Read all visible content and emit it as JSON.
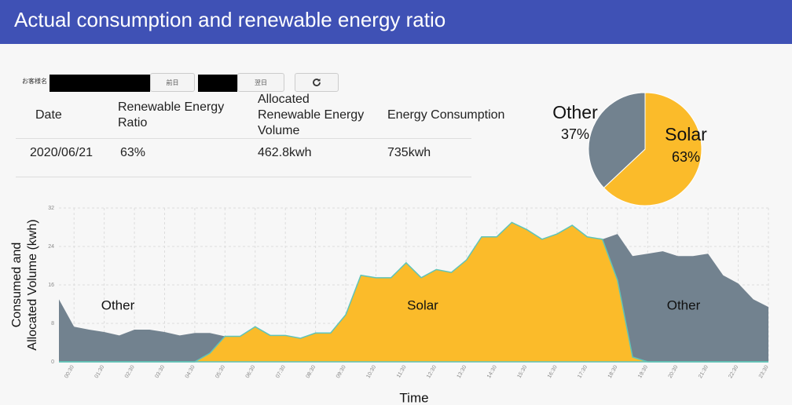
{
  "header": {
    "title": "Actual consumption and renewable energy ratio"
  },
  "controls": {
    "customer_label": "お客様名",
    "prev_button": "前日",
    "next_button": "翌日"
  },
  "table": {
    "columns": [
      "Date",
      "Renewable Energy Ratio",
      "Allocated Renewable Energy Volume",
      "Energy Consumption"
    ],
    "rows": [
      [
        "2020/06/21",
        "63%",
        "462.8kwh",
        "735kwh"
      ]
    ]
  },
  "chart_data": [
    {
      "type": "pie",
      "categories": [
        "Other",
        "Solar"
      ],
      "values": [
        37,
        63
      ],
      "value_labels": [
        "37%",
        "63%"
      ],
      "colors": [
        "#72828f",
        "#fbbb2a"
      ]
    },
    {
      "type": "area",
      "x_label": "Time",
      "y_label": [
        "Consumed and",
        "Allocated Volume (kwh)"
      ],
      "categories": [
        null,
        "00:30",
        null,
        "01:30",
        null,
        "02:30",
        null,
        "03:30",
        null,
        "04:30",
        null,
        "05:30",
        null,
        "06:30",
        null,
        "07:30",
        null,
        "08:30",
        null,
        "09:30",
        null,
        "10:30",
        null,
        "11:30",
        null,
        "12:30",
        null,
        "13:30",
        null,
        "14:30",
        null,
        "15:30",
        null,
        "16:30",
        null,
        "17:30",
        null,
        "18:30",
        null,
        "19:30",
        null,
        "20:30",
        null,
        "21:30",
        null,
        "22:30",
        null,
        "23:30"
      ],
      "series": [
        {
          "color": "#72828f",
          "values": [
            13,
            7.3,
            6.7,
            6.2,
            5.5,
            6.7,
            6.7,
            6.2,
            5.5,
            6,
            6,
            5.3,
            5.3,
            7.3,
            5.5,
            5.5,
            4.9,
            6,
            6,
            9.8,
            18,
            17.5,
            17.5,
            20.6,
            17.5,
            19.2,
            18.6,
            21.2,
            26,
            26,
            29,
            27.5,
            25.5,
            26.6,
            28.4,
            26,
            25.5,
            26.6,
            22,
            22.5,
            23,
            22,
            22,
            22.5,
            18,
            16.3,
            13,
            11.4
          ]
        },
        {
          "color": "#fbbb2a",
          "values": [
            0,
            0,
            0,
            0,
            0,
            0,
            0,
            0,
            0,
            0,
            1.8,
            5.3,
            5.3,
            7.3,
            5.5,
            5.5,
            4.9,
            6,
            6,
            9.8,
            18,
            17.5,
            17.5,
            20.6,
            17.5,
            19.2,
            18.6,
            21.2,
            26,
            26,
            29,
            27.5,
            25.5,
            26.6,
            28.4,
            26,
            25.5,
            17,
            1,
            0,
            0,
            0,
            0,
            0,
            0,
            0,
            0,
            0
          ]
        }
      ],
      "annotations": [
        "Other",
        "Solar",
        "Other"
      ],
      "ylim": [
        0,
        32
      ],
      "yticks": [
        0,
        8,
        16,
        24,
        32
      ],
      "grid": true
    }
  ]
}
